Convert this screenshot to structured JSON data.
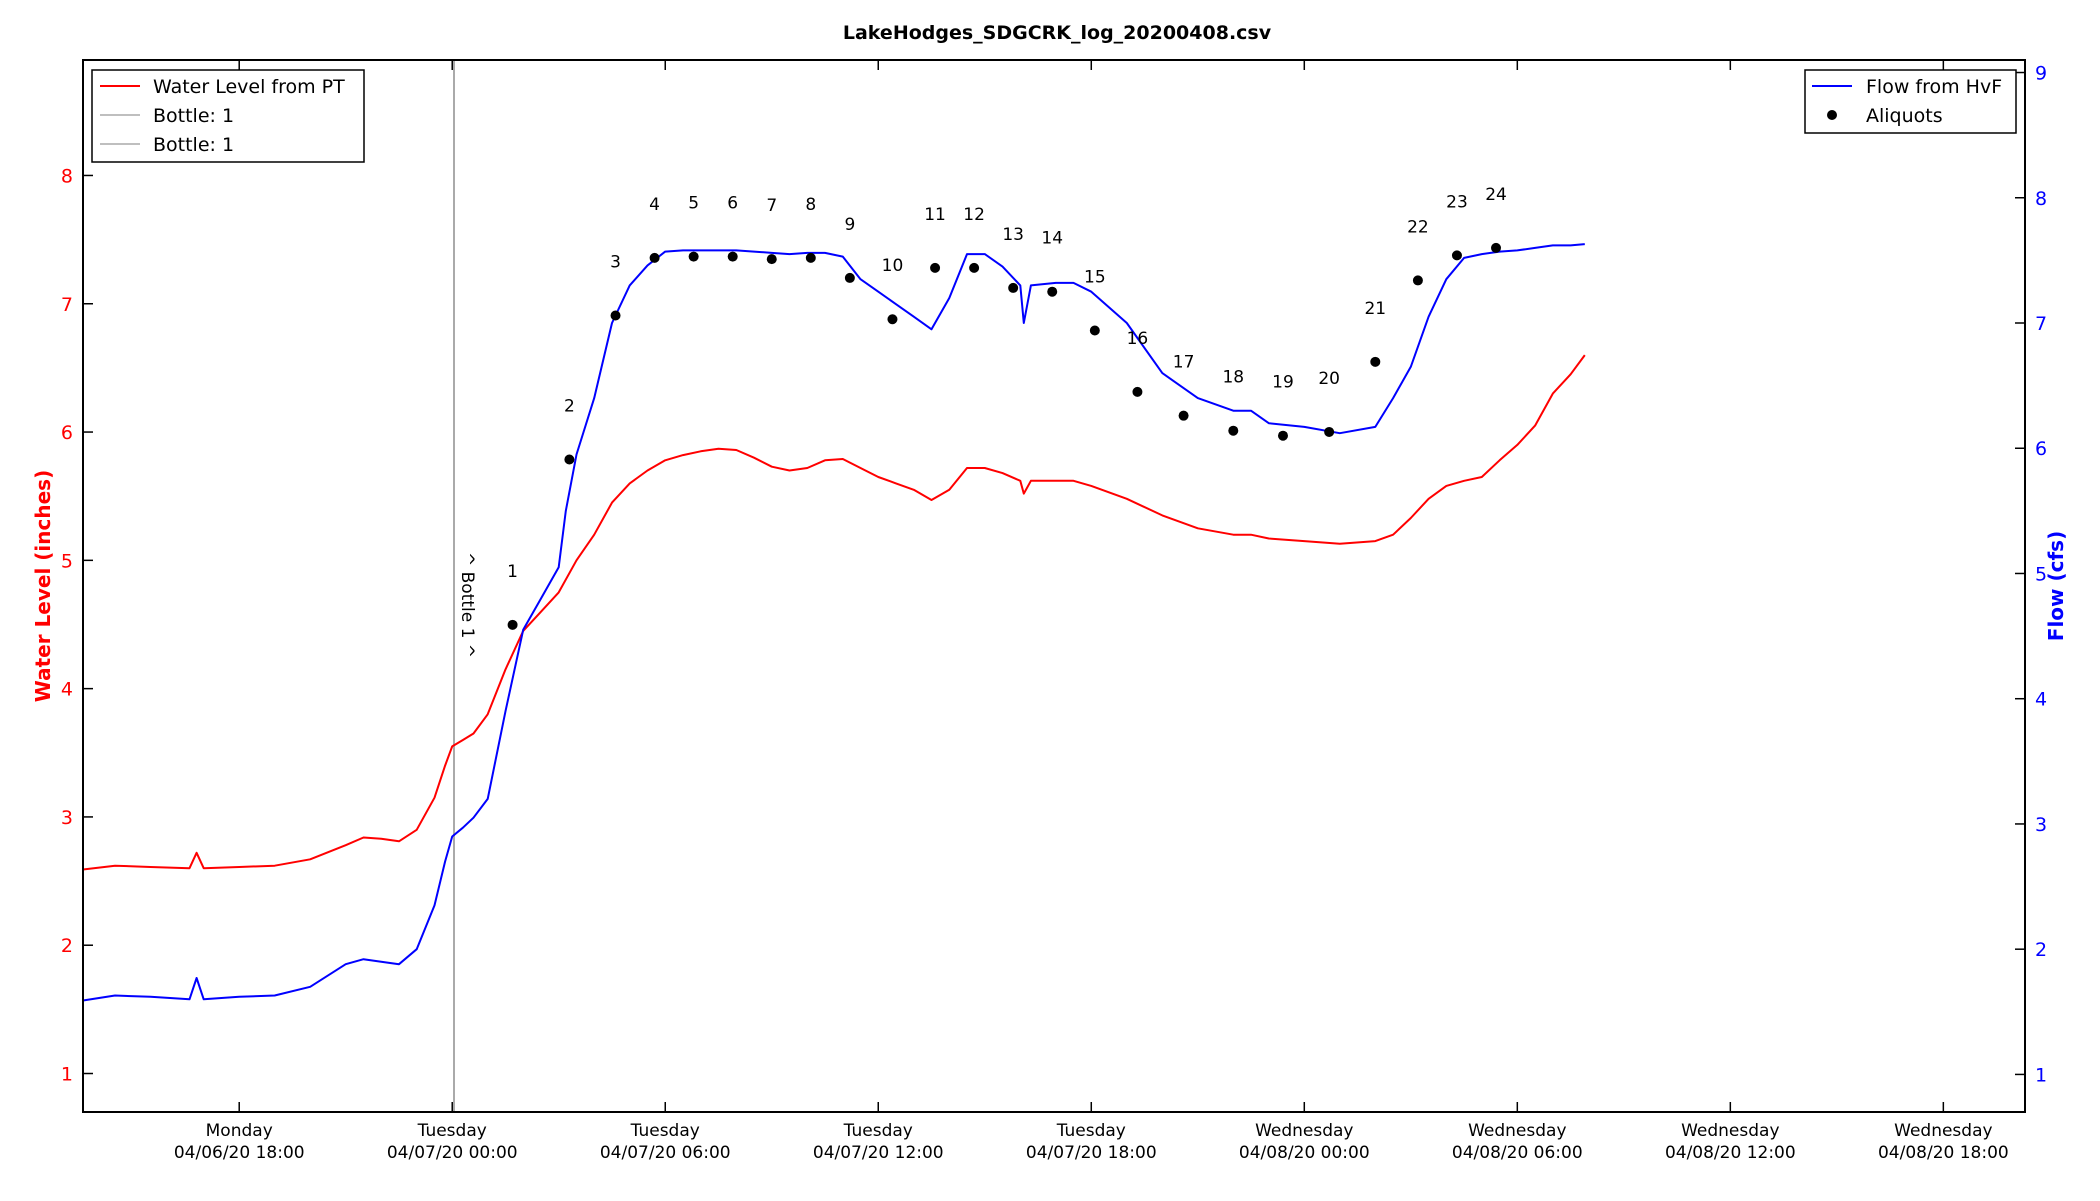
{
  "chart_data": {
    "type": "line",
    "title": "LakeHodges_SDGCRK_log_20200408.csv",
    "y_left": {
      "label": "Water Level (inches)",
      "range": [
        0.7,
        8.9
      ],
      "ticks": [
        1,
        2,
        3,
        4,
        5,
        6,
        7,
        8
      ],
      "color": "#ff0000"
    },
    "y_right": {
      "label": "Flow (cfs)",
      "range": [
        0.7,
        9.1
      ],
      "ticks": [
        1,
        2,
        3,
        4,
        5,
        6,
        7,
        8,
        9
      ],
      "color": "#0000ff"
    },
    "x_axis": {
      "unit": "hours since 04/06/20 18:00",
      "range": [
        -4.4,
        50.3
      ],
      "ticks": [
        {
          "x": 0,
          "day": "Monday",
          "date": "04/06/20 18:00"
        },
        {
          "x": 6,
          "day": "Tuesday",
          "date": "04/07/20 00:00"
        },
        {
          "x": 12,
          "day": "Tuesday",
          "date": "04/07/20 06:00"
        },
        {
          "x": 18,
          "day": "Tuesday",
          "date": "04/07/20 12:00"
        },
        {
          "x": 24,
          "day": "Tuesday",
          "date": "04/07/20 18:00"
        },
        {
          "x": 30,
          "day": "Wednesday",
          "date": "04/08/20 00:00"
        },
        {
          "x": 36,
          "day": "Wednesday",
          "date": "04/08/20 06:00"
        },
        {
          "x": 42,
          "day": "Wednesday",
          "date": "04/08/20 12:00"
        },
        {
          "x": 48,
          "day": "Wednesday",
          "date": "04/08/20 18:00"
        }
      ]
    },
    "vertical_marker": {
      "x": 6.05,
      "label": "^ Bottle 1 ^"
    },
    "legend_left": {
      "placement": "top-left",
      "entries": [
        {
          "label": "Water Level from PT",
          "color": "#ff0000"
        },
        {
          "label": "Bottle: 1",
          "color": "#aaaaaa"
        },
        {
          "label": "Bottle: 1",
          "color": "#aaaaaa"
        }
      ]
    },
    "legend_right": {
      "placement": "top-right",
      "entries": [
        {
          "label": "Flow from HvF",
          "color": "#0000ff",
          "kind": "line"
        },
        {
          "label": "Aliquots",
          "color": "#000000",
          "kind": "marker"
        }
      ]
    },
    "series": [
      {
        "name": "Water Level from PT",
        "axis": "left",
        "color": "#ff0000",
        "points": [
          [
            -4.4,
            2.59
          ],
          [
            -3.5,
            2.62
          ],
          [
            -2.5,
            2.61
          ],
          [
            -1.4,
            2.6
          ],
          [
            -1.2,
            2.72
          ],
          [
            -1.0,
            2.6
          ],
          [
            0,
            2.61
          ],
          [
            1.0,
            2.62
          ],
          [
            2.0,
            2.67
          ],
          [
            3.0,
            2.78
          ],
          [
            3.5,
            2.84
          ],
          [
            4.0,
            2.83
          ],
          [
            4.5,
            2.81
          ],
          [
            5.0,
            2.9
          ],
          [
            5.5,
            3.15
          ],
          [
            5.8,
            3.4
          ],
          [
            6.0,
            3.55
          ],
          [
            6.3,
            3.6
          ],
          [
            6.6,
            3.65
          ],
          [
            7.0,
            3.8
          ],
          [
            7.5,
            4.15
          ],
          [
            8.0,
            4.45
          ],
          [
            8.5,
            4.6
          ],
          [
            9.0,
            4.75
          ],
          [
            9.5,
            5.0
          ],
          [
            10.0,
            5.2
          ],
          [
            10.5,
            5.45
          ],
          [
            11.0,
            5.6
          ],
          [
            11.5,
            5.7
          ],
          [
            12.0,
            5.78
          ],
          [
            12.5,
            5.82
          ],
          [
            13.0,
            5.85
          ],
          [
            13.5,
            5.87
          ],
          [
            14.0,
            5.86
          ],
          [
            14.5,
            5.8
          ],
          [
            15.0,
            5.73
          ],
          [
            15.5,
            5.7
          ],
          [
            16.0,
            5.72
          ],
          [
            16.5,
            5.78
          ],
          [
            17.0,
            5.79
          ],
          [
            17.5,
            5.72
          ],
          [
            18.0,
            5.65
          ],
          [
            18.5,
            5.6
          ],
          [
            19.0,
            5.55
          ],
          [
            19.5,
            5.47
          ],
          [
            20.0,
            5.55
          ],
          [
            20.5,
            5.72
          ],
          [
            21.0,
            5.72
          ],
          [
            21.5,
            5.68
          ],
          [
            22.0,
            5.62
          ],
          [
            22.1,
            5.52
          ],
          [
            22.3,
            5.62
          ],
          [
            23.0,
            5.62
          ],
          [
            23.5,
            5.62
          ],
          [
            24.0,
            5.58
          ],
          [
            25.0,
            5.48
          ],
          [
            26.0,
            5.35
          ],
          [
            27.0,
            5.25
          ],
          [
            28.0,
            5.2
          ],
          [
            28.5,
            5.2
          ],
          [
            29.0,
            5.17
          ],
          [
            30.0,
            5.15
          ],
          [
            31.0,
            5.13
          ],
          [
            32.0,
            5.15
          ],
          [
            32.5,
            5.2
          ],
          [
            33.0,
            5.33
          ],
          [
            33.5,
            5.48
          ],
          [
            34.0,
            5.58
          ],
          [
            34.5,
            5.62
          ],
          [
            35.0,
            5.65
          ],
          [
            35.5,
            5.78
          ],
          [
            36.0,
            5.9
          ],
          [
            36.5,
            6.05
          ],
          [
            37.0,
            6.3
          ],
          [
            37.5,
            6.45
          ],
          [
            37.9,
            6.6
          ]
        ]
      },
      {
        "name": "Flow from HvF",
        "axis": "right",
        "color": "#0000ff",
        "points": [
          [
            -4.4,
            1.59
          ],
          [
            -3.5,
            1.63
          ],
          [
            -2.5,
            1.62
          ],
          [
            -1.4,
            1.6
          ],
          [
            -1.2,
            1.77
          ],
          [
            -1.0,
            1.6
          ],
          [
            0,
            1.62
          ],
          [
            1.0,
            1.63
          ],
          [
            2.0,
            1.7
          ],
          [
            3.0,
            1.88
          ],
          [
            3.5,
            1.92
          ],
          [
            4.0,
            1.9
          ],
          [
            4.5,
            1.88
          ],
          [
            5.0,
            2.0
          ],
          [
            5.5,
            2.35
          ],
          [
            5.8,
            2.7
          ],
          [
            6.0,
            2.9
          ],
          [
            6.3,
            2.97
          ],
          [
            6.6,
            3.05
          ],
          [
            7.0,
            3.2
          ],
          [
            7.5,
            3.9
          ],
          [
            8.0,
            4.55
          ],
          [
            8.5,
            4.8
          ],
          [
            9.0,
            5.05
          ],
          [
            9.2,
            5.5
          ],
          [
            9.5,
            5.95
          ],
          [
            10.0,
            6.4
          ],
          [
            10.5,
            7.0
          ],
          [
            11.0,
            7.3
          ],
          [
            11.5,
            7.46
          ],
          [
            12.0,
            7.57
          ],
          [
            12.5,
            7.58
          ],
          [
            13.0,
            7.58
          ],
          [
            14.0,
            7.58
          ],
          [
            14.5,
            7.57
          ],
          [
            15.0,
            7.56
          ],
          [
            15.5,
            7.55
          ],
          [
            16.0,
            7.56
          ],
          [
            16.5,
            7.56
          ],
          [
            17.0,
            7.53
          ],
          [
            17.5,
            7.35
          ],
          [
            18.0,
            7.25
          ],
          [
            18.5,
            7.15
          ],
          [
            19.0,
            7.05
          ],
          [
            19.5,
            6.95
          ],
          [
            20.0,
            7.2
          ],
          [
            20.5,
            7.55
          ],
          [
            21.0,
            7.55
          ],
          [
            21.5,
            7.45
          ],
          [
            22.0,
            7.3
          ],
          [
            22.1,
            7.0
          ],
          [
            22.3,
            7.3
          ],
          [
            23.0,
            7.32
          ],
          [
            23.5,
            7.32
          ],
          [
            24.0,
            7.25
          ],
          [
            25.0,
            7.0
          ],
          [
            26.0,
            6.6
          ],
          [
            27.0,
            6.4
          ],
          [
            28.0,
            6.3
          ],
          [
            28.5,
            6.3
          ],
          [
            29.0,
            6.2
          ],
          [
            30.0,
            6.17
          ],
          [
            31.0,
            6.12
          ],
          [
            32.0,
            6.17
          ],
          [
            32.5,
            6.4
          ],
          [
            33.0,
            6.65
          ],
          [
            33.5,
            7.05
          ],
          [
            34.0,
            7.35
          ],
          [
            34.5,
            7.52
          ],
          [
            35.0,
            7.55
          ],
          [
            35.5,
            7.57
          ],
          [
            36.0,
            7.58
          ],
          [
            36.5,
            7.6
          ],
          [
            37.0,
            7.62
          ],
          [
            37.5,
            7.62
          ],
          [
            37.9,
            7.63
          ]
        ]
      }
    ],
    "aliquots": {
      "name": "Aliquots",
      "axis": "right",
      "points": [
        {
          "n": "1",
          "x": 7.7,
          "y": 4.59
        },
        {
          "n": "2",
          "x": 9.3,
          "y": 5.91
        },
        {
          "n": "3",
          "x": 10.6,
          "y": 7.06
        },
        {
          "n": "4",
          "x": 11.7,
          "y": 7.52
        },
        {
          "n": "5",
          "x": 12.8,
          "y": 7.53
        },
        {
          "n": "6",
          "x": 13.9,
          "y": 7.53
        },
        {
          "n": "7",
          "x": 15.0,
          "y": 7.51
        },
        {
          "n": "8",
          "x": 16.1,
          "y": 7.52
        },
        {
          "n": "9",
          "x": 17.2,
          "y": 7.36
        },
        {
          "n": "10",
          "x": 18.4,
          "y": 7.03
        },
        {
          "n": "11",
          "x": 19.6,
          "y": 7.44
        },
        {
          "n": "12",
          "x": 20.7,
          "y": 7.44
        },
        {
          "n": "13",
          "x": 21.8,
          "y": 7.28
        },
        {
          "n": "14",
          "x": 22.9,
          "y": 7.25
        },
        {
          "n": "15",
          "x": 24.1,
          "y": 6.94
        },
        {
          "n": "16",
          "x": 25.3,
          "y": 6.45
        },
        {
          "n": "17",
          "x": 26.6,
          "y": 6.26
        },
        {
          "n": "18",
          "x": 28.0,
          "y": 6.14
        },
        {
          "n": "19",
          "x": 29.4,
          "y": 6.1
        },
        {
          "n": "20",
          "x": 30.7,
          "y": 6.13
        },
        {
          "n": "21",
          "x": 32.0,
          "y": 6.69
        },
        {
          "n": "22",
          "x": 33.2,
          "y": 7.34
        },
        {
          "n": "23",
          "x": 34.3,
          "y": 7.54
        },
        {
          "n": "24",
          "x": 35.4,
          "y": 7.6
        }
      ]
    }
  }
}
